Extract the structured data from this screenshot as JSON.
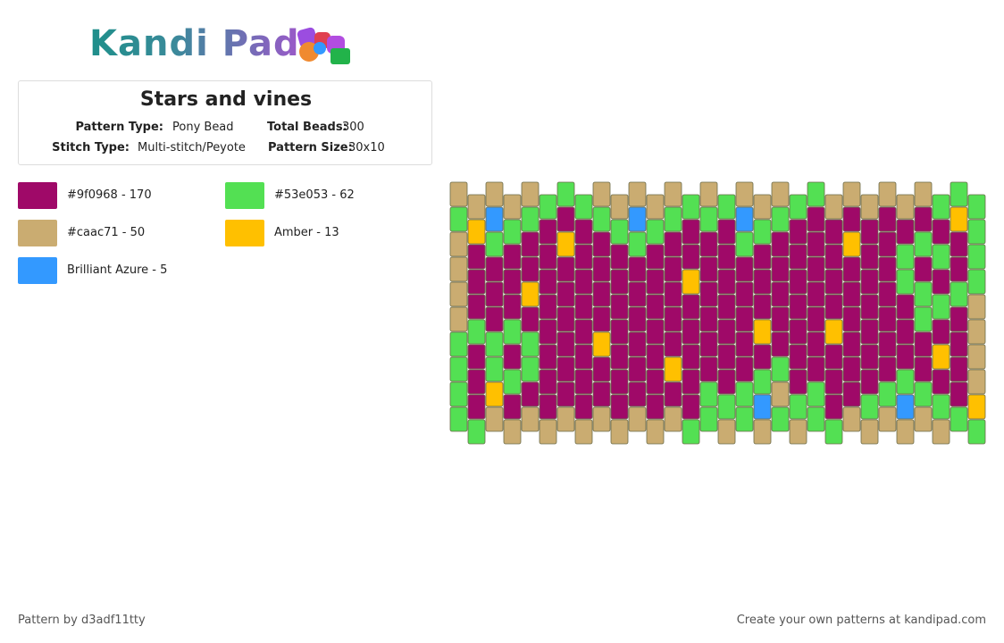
{
  "header": {
    "logo": "Kandi Pad"
  },
  "info": {
    "title": "Stars and vines",
    "fields": [
      {
        "label": "Pattern Type:",
        "value": "Pony Bead"
      },
      {
        "label": "Total Beads:",
        "value": "300"
      },
      {
        "label": "Stitch Type:",
        "value": "Multi-stitch/Peyote"
      },
      {
        "label": "Pattern Size:",
        "value": "30x10"
      }
    ]
  },
  "legend": [
    {
      "label": "#9f0968 - 170",
      "color": "#9f0968"
    },
    {
      "label": "#53e053 - 62",
      "color": "#53e053"
    },
    {
      "label": "#caac71 - 50",
      "color": "#caac71"
    },
    {
      "label": "Amber - 13",
      "color": "#ffc000"
    },
    {
      "label": "Brilliant Azure - 5",
      "color": "#3399ff"
    }
  ],
  "footer": {
    "author": "Pattern by d3adf11tty",
    "link": "Create your own patterns at kandipad.com"
  }
}
